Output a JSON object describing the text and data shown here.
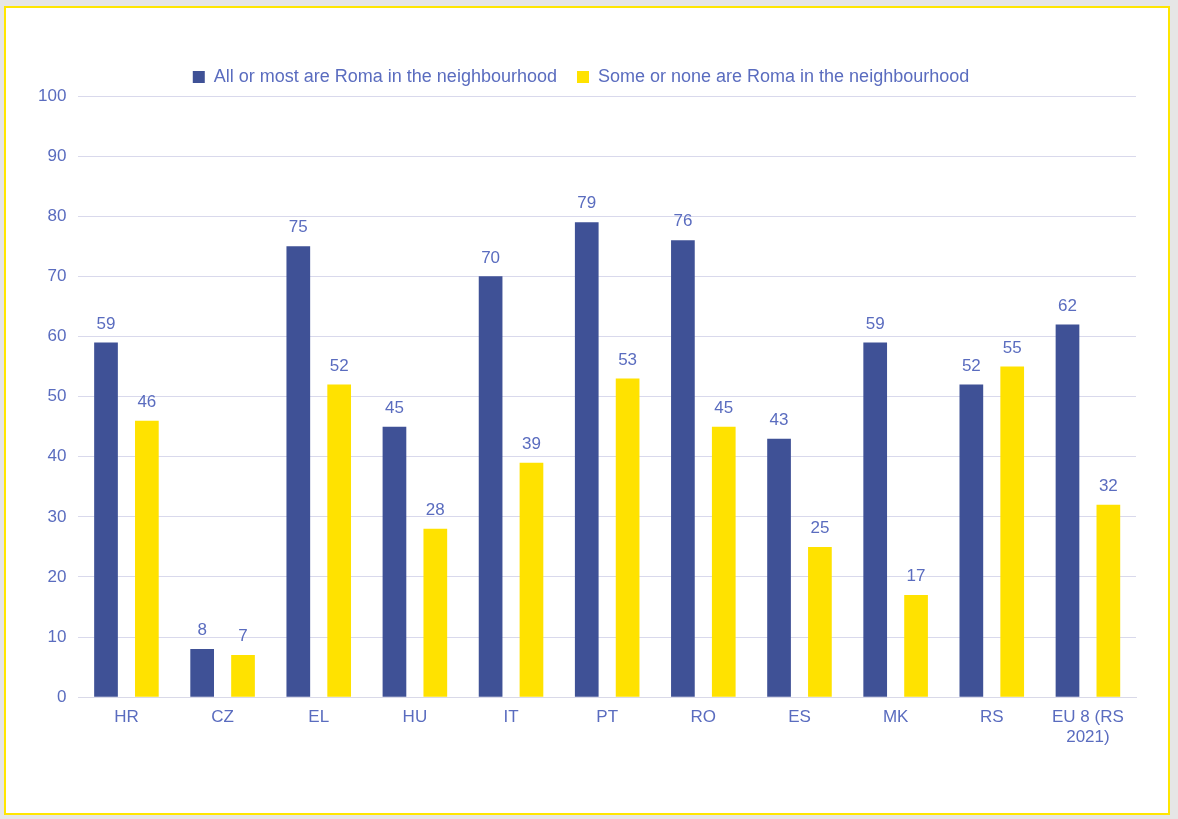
{
  "chart_data": {
    "type": "bar",
    "categories": [
      "HR",
      "CZ",
      "EL",
      "HU",
      "IT",
      "PT",
      "RO",
      "ES",
      "MK",
      "RS",
      "EU 8 (RS 2021)"
    ],
    "series": [
      {
        "name": "All or most are Roma in the neighbourhood",
        "color": "#3f5196",
        "values": [
          59,
          8,
          75,
          45,
          70,
          79,
          76,
          43,
          59,
          52,
          62
        ]
      },
      {
        "name": "Some or none are Roma in the neighbourhood",
        "color": "#ffe200",
        "values": [
          46,
          7,
          52,
          28,
          39,
          53,
          45,
          25,
          17,
          55,
          32
        ]
      }
    ],
    "ylim": [
      0,
      100
    ],
    "yticks": [
      0,
      10,
      20,
      30,
      40,
      50,
      60,
      70,
      80,
      90,
      100
    ],
    "grid": "y",
    "legend": "top",
    "data_labels": true
  }
}
